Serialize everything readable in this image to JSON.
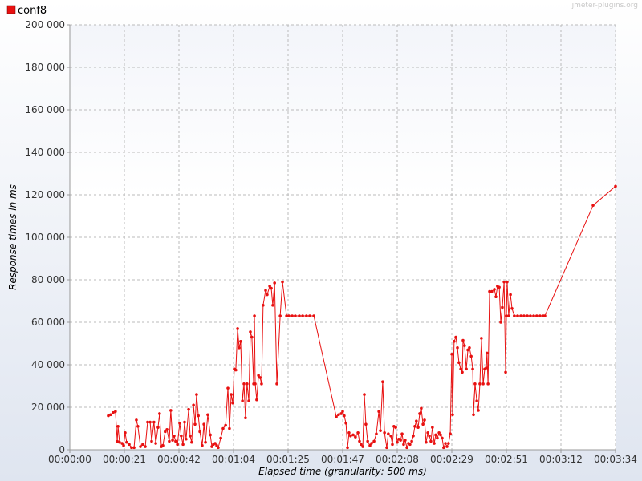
{
  "chart_data": {
    "type": "line",
    "xlabel": "Elapsed time (granularity: 500 ms)",
    "ylabel": "Response times in ms",
    "watermark": "jmeter-plugins.org",
    "grid": true,
    "xlim": [
      0,
      214
    ],
    "ylim": [
      0,
      200000
    ],
    "xticks": [
      {
        "value": 0,
        "label": "00:00:00"
      },
      {
        "value": 21.4,
        "label": "00:00:21"
      },
      {
        "value": 42.8,
        "label": "00:00:42"
      },
      {
        "value": 64.2,
        "label": "00:01:04"
      },
      {
        "value": 85.6,
        "label": "00:01:25"
      },
      {
        "value": 107,
        "label": "00:01:47"
      },
      {
        "value": 128.4,
        "label": "00:02:08"
      },
      {
        "value": 149.8,
        "label": "00:02:29"
      },
      {
        "value": 171.2,
        "label": "00:02:51"
      },
      {
        "value": 192.6,
        "label": "00:03:12"
      },
      {
        "value": 214,
        "label": "00:03:34"
      }
    ],
    "yticks": [
      0,
      {
        "value": 20000,
        "label": "20 000"
      },
      {
        "value": 40000,
        "label": "40 000"
      },
      {
        "value": 60000,
        "label": "60 000"
      },
      {
        "value": 80000,
        "label": "80 000"
      },
      {
        "value": 100000,
        "label": "100 000"
      },
      {
        "value": 120000,
        "label": "120 000"
      },
      {
        "value": 140000,
        "label": "140 000"
      },
      {
        "value": 160000,
        "label": "160 000"
      },
      {
        "value": 180000,
        "label": "180 000"
      },
      {
        "value": 200000,
        "label": "200 000"
      }
    ],
    "x": [
      15.1,
      16.0,
      17.0,
      17.9,
      18.6,
      18.9,
      19.5,
      20.5,
      21.1,
      21.7,
      22.3,
      23.3,
      24.2,
      25.2,
      26.1,
      26.7,
      27.7,
      28.6,
      29.6,
      30.5,
      31.5,
      32.1,
      33.0,
      33.7,
      34.6,
      35.2,
      35.9,
      36.5,
      37.4,
      38.1,
      39.0,
      39.6,
      40.3,
      40.9,
      41.5,
      42.2,
      43.1,
      43.7,
      44.4,
      45.0,
      45.6,
      46.6,
      47.2,
      47.8,
      48.5,
      49.1,
      49.7,
      50.4,
      51.0,
      51.9,
      52.6,
      53.2,
      54.1,
      55.1,
      55.7,
      56.3,
      57.0,
      57.6,
      58.2,
      59.2,
      60.1,
      61.1,
      62.0,
      62.6,
      63.3,
      63.9,
      64.5,
      65.1,
      65.8,
      66.4,
      67.0,
      67.7,
      68.3,
      68.9,
      69.5,
      70.2,
      70.8,
      71.4,
      72.1,
      72.4,
      72.7,
      73.3,
      74.0,
      74.6,
      75.2,
      75.8,
      76.8,
      77.4,
      78.4,
      79.0,
      79.6,
      80.3,
      81.2,
      82.5,
      83.4,
      85.0,
      85.9,
      87.2,
      88.4,
      90.0,
      91.3,
      92.8,
      94.1,
      95.7,
      104.5,
      105.4,
      106.4,
      107.0,
      107.6,
      108.3,
      108.9,
      109.5,
      110.1,
      111.1,
      112.0,
      113.0,
      113.6,
      114.2,
      114.9,
      115.5,
      116.1,
      116.8,
      117.7,
      118.3,
      119.3,
      120.2,
      121.2,
      121.8,
      122.7,
      123.4,
      124.3,
      124.9,
      125.9,
      126.5,
      127.1,
      127.8,
      128.4,
      129.0,
      129.7,
      130.3,
      130.9,
      131.5,
      132.2,
      132.8,
      133.4,
      134.1,
      134.7,
      135.3,
      135.9,
      136.6,
      137.2,
      137.8,
      138.5,
      139.1,
      139.7,
      140.4,
      141.0,
      141.6,
      142.2,
      142.9,
      143.5,
      144.1,
      144.8,
      145.4,
      146.0,
      146.6,
      147.3,
      147.9,
      148.5,
      149.2,
      149.8,
      150.1,
      150.7,
      151.4,
      152.0,
      152.6,
      153.3,
      153.9,
      154.2,
      154.8,
      155.5,
      156.1,
      156.7,
      157.4,
      158.0,
      158.3,
      158.9,
      159.6,
      160.2,
      160.8,
      161.4,
      162.1,
      162.7,
      163.3,
      163.6,
      164.0,
      164.6,
      165.5,
      166.5,
      167.1,
      167.7,
      168.4,
      169.0,
      169.6,
      170.3,
      170.9,
      171.2,
      171.5,
      172.1,
      172.8,
      173.4,
      174.3,
      175.6,
      176.9,
      178.1,
      179.4,
      180.6,
      181.9,
      183.1,
      184.4,
      185.7,
      186.3,
      205.2,
      214.0
    ],
    "series": [
      {
        "name": "conf8",
        "color": "#e81010",
        "values": [
          16000,
          16500,
          17500,
          18000,
          4000,
          11000,
          3500,
          3000,
          2000,
          8000,
          3500,
          2500,
          1000,
          1000,
          14000,
          11000,
          1500,
          2500,
          1500,
          13000,
          13000,
          4000,
          13000,
          3000,
          10500,
          17000,
          1500,
          2000,
          8500,
          9500,
          4000,
          18500,
          4500,
          6500,
          4000,
          2500,
          12500,
          6500,
          2500,
          13000,
          5000,
          19000,
          6500,
          3500,
          21000,
          12000,
          26000,
          16000,
          8500,
          2000,
          12000,
          3500,
          16500,
          7000,
          1500,
          2500,
          3000,
          2000,
          1000,
          5500,
          10000,
          11500,
          29000,
          10000,
          26000,
          22000,
          38000,
          37500,
          57000,
          48000,
          51000,
          23000,
          31000,
          15000,
          31000,
          23000,
          55500,
          53000,
          31000,
          63000,
          31000,
          23500,
          35000,
          34000,
          31000,
          68000,
          75000,
          73000,
          77000,
          76000,
          68000,
          78500,
          31000,
          63000,
          79000,
          63000,
          63000,
          63000,
          63000,
          63000,
          63000,
          63000,
          63000,
          63000,
          15500,
          16500,
          17000,
          18000,
          16000,
          12500,
          1000,
          8000,
          6500,
          7000,
          6000,
          8000,
          4000,
          2500,
          1500,
          26000,
          12000,
          4000,
          2000,
          3000,
          4000,
          7500,
          18000,
          9000,
          32000,
          8000,
          1000,
          7500,
          6500,
          2500,
          11000,
          10500,
          3500,
          5000,
          4500,
          7500,
          2500,
          4500,
          1000,
          3000,
          2500,
          4000,
          6500,
          11000,
          13500,
          10500,
          17000,
          19500,
          12000,
          14000,
          3500,
          8000,
          6500,
          4000,
          10500,
          3000,
          7000,
          5500,
          8000,
          7000,
          5500,
          1000,
          3000,
          1500,
          3000,
          7500,
          45000,
          16500,
          51000,
          53000,
          48000,
          41000,
          38000,
          36500,
          51500,
          49000,
          38000,
          47000,
          48000,
          44000,
          38000,
          16500,
          31000,
          23000,
          18500,
          31000,
          52500,
          31000,
          38000,
          38500,
          45500,
          31000,
          74500,
          74500,
          75500,
          72000,
          77000,
          76500,
          60000,
          67000,
          79000,
          36500,
          63000,
          79000,
          63000,
          73000,
          66500,
          63000,
          63000,
          63000,
          63000,
          63000,
          63000,
          63000,
          63000,
          63000,
          63000,
          63000,
          115000,
          124000
        ]
      }
    ]
  }
}
